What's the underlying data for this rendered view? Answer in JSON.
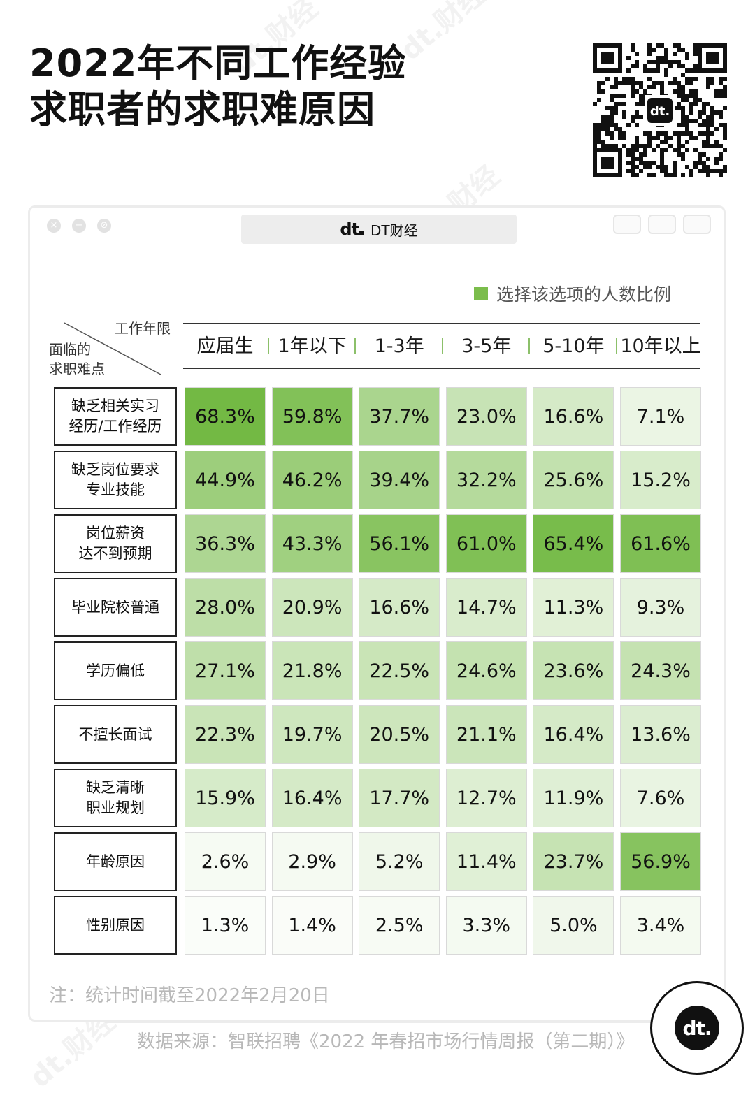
{
  "title_lines": [
    "2022年不同工作经验",
    "求职者的求职难原因"
  ],
  "window_tab": {
    "logo": "dt",
    "label": "DT财经"
  },
  "legend": "选择该选项的人数比例",
  "corner": {
    "top": "工作年限",
    "bottom_line1": "面临的",
    "bottom_line2": "求职难点"
  },
  "note": "注：统计时间截至2022年2月20日",
  "source": "数据来源：智联招聘《2022 年春招市场行情周报（第二期）》",
  "badge": "dt",
  "watermark": "dt.财经",
  "colors": {
    "accent": "#7bbd4c",
    "low": "#ffffff",
    "high": "#6fb73f"
  },
  "chart_data": {
    "type": "heatmap",
    "title": "2022年不同工作经验求职者的求职难原因",
    "xlabel": "工作年限",
    "ylabel": "面临的求职难点",
    "columns": [
      "应届生",
      "1年以下",
      "1-3年",
      "3-5年",
      "5-10年",
      "10年以上"
    ],
    "rows": [
      {
        "label": [
          "缺乏相关实习",
          "经历/工作经历"
        ],
        "values": [
          68.3,
          59.8,
          37.7,
          23.0,
          16.6,
          7.1
        ]
      },
      {
        "label": [
          "缺乏岗位要求",
          "专业技能"
        ],
        "values": [
          44.9,
          46.2,
          39.4,
          32.2,
          25.6,
          15.2
        ]
      },
      {
        "label": [
          "岗位薪资",
          "达不到预期"
        ],
        "values": [
          36.3,
          43.3,
          56.1,
          61.0,
          65.4,
          61.6
        ]
      },
      {
        "label": [
          "毕业院校普通"
        ],
        "values": [
          28.0,
          20.9,
          16.6,
          14.7,
          11.3,
          9.3
        ]
      },
      {
        "label": [
          "学历偏低"
        ],
        "values": [
          27.1,
          21.8,
          22.5,
          24.6,
          23.6,
          24.3
        ]
      },
      {
        "label": [
          "不擅长面试"
        ],
        "values": [
          22.3,
          19.7,
          20.5,
          21.1,
          16.4,
          13.6
        ]
      },
      {
        "label": [
          "缺乏清晰",
          "职业规划"
        ],
        "values": [
          15.9,
          16.4,
          17.7,
          12.7,
          11.9,
          7.6
        ]
      },
      {
        "label": [
          "年龄原因"
        ],
        "values": [
          2.6,
          2.9,
          5.2,
          11.4,
          23.7,
          56.9
        ]
      },
      {
        "label": [
          "性别原因"
        ],
        "values": [
          1.3,
          1.4,
          2.5,
          3.3,
          5.0,
          3.4
        ]
      }
    ],
    "unit": "%",
    "legend": "选择该选项的人数比例",
    "value_range": [
      0,
      70
    ]
  }
}
